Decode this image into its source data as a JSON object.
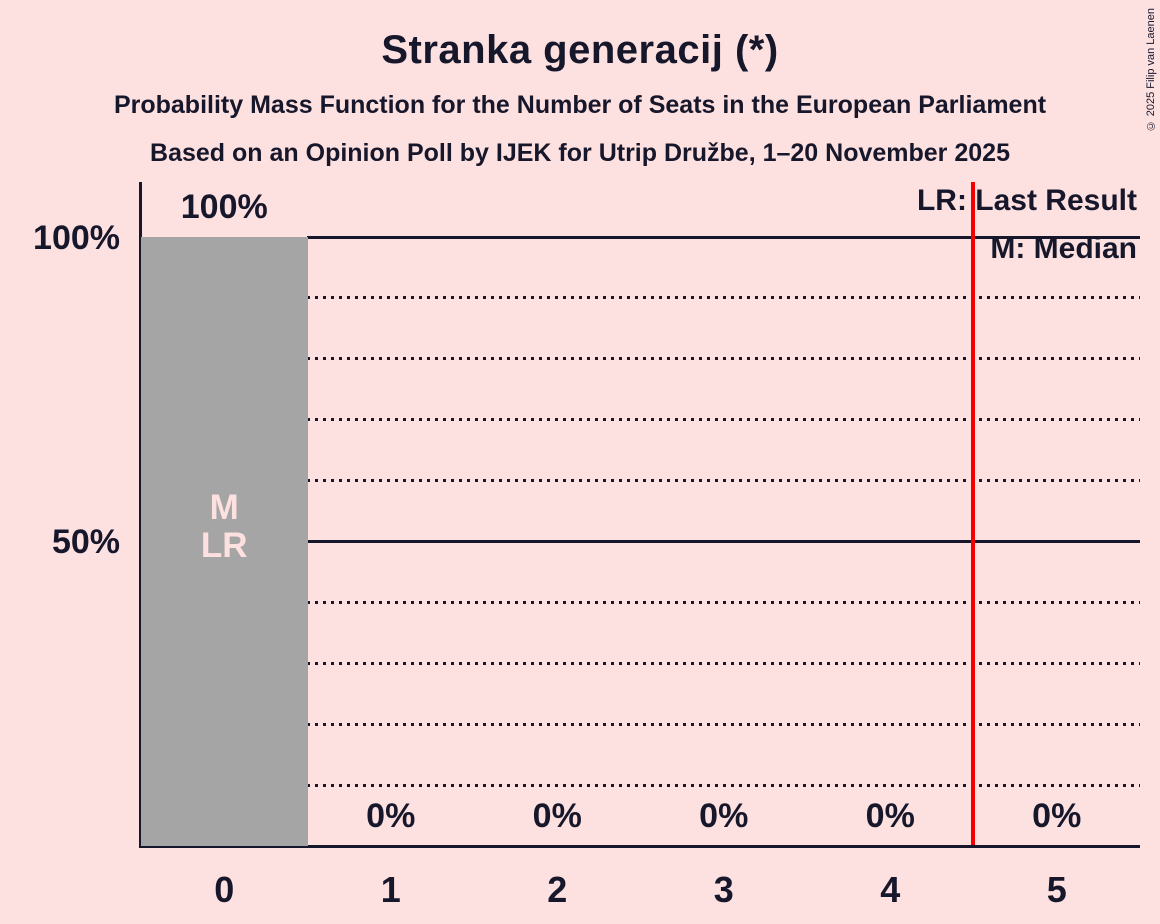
{
  "copyright": "© 2025 Filip van Laenen",
  "header": {
    "title": "Stranka generacij (*)",
    "subtitle": "Probability Mass Function for the Number of Seats in the European Parliament",
    "subsubtitle": "Based on an Opinion Poll by IJEK for Utrip Družbe, 1–20 November 2025"
  },
  "legend": {
    "last_result": "LR: Last Result",
    "median": "M: Median"
  },
  "chart_data": {
    "type": "bar",
    "title": "Stranka generacij (*)",
    "categories": [
      "0",
      "1",
      "2",
      "3",
      "4",
      "5"
    ],
    "values": [
      100,
      0,
      0,
      0,
      0,
      0
    ],
    "bar_value_labels": [
      "100%",
      "0%",
      "0%",
      "0%",
      "0%",
      "0%"
    ],
    "ylabel": "",
    "xlabel": "",
    "ylim": [
      0,
      100
    ],
    "ytick_labels": [
      "100%",
      "50%"
    ],
    "ytick_values": [
      100,
      50
    ],
    "gridlines": {
      "solid": [
        100,
        50
      ],
      "dotted": [
        90,
        80,
        70,
        60,
        40,
        30,
        20,
        10
      ]
    },
    "legend_position": "top-right",
    "bar_annotations": [
      {
        "category": "0",
        "lines": [
          "M",
          "LR"
        ]
      }
    ],
    "median_category": "0",
    "last_result_category": "0",
    "red_line_at_value": 4.5,
    "colors": {
      "background": "#fde0e0",
      "bar": "#a5a5a5",
      "text": "#17172b",
      "red_line": "#f40000",
      "bar_label": "#fde0e0"
    }
  }
}
